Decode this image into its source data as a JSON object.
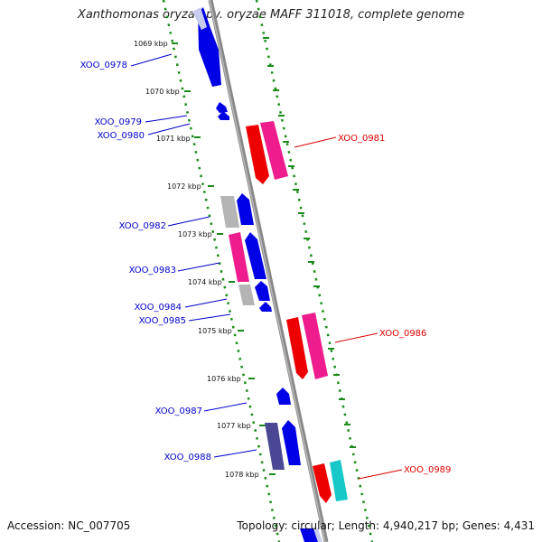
{
  "title": "Xanthomonas oryzae pv. oryzae MAFF 311018, complete genome",
  "accession": "Accession: NC_007705",
  "topology": "Topology: circular; Length: 4,940,217 bp; Genes: 4,431",
  "colors": {
    "axis": "#888888",
    "tick": "#1a8a1a",
    "left_label": "#0000cc",
    "right_label": "#dd0000",
    "blue": "#0000e6",
    "red": "#ee0000",
    "pink": "#ee1c8c",
    "gray": "#b4b4b4",
    "navy": "#4a4894",
    "cyan": "#18c8c8",
    "lavender": "#c8cdf0"
  },
  "kbp_labels": [
    "1069 kbp",
    "1070 kbp",
    "1071 kbp",
    "1072 kbp",
    "1073 kbp",
    "1074 kbp",
    "1075 kbp",
    "1076 kbp",
    "1077 kbp",
    "1078 kbp"
  ],
  "genes_left": [
    {
      "label": "XOO_0978"
    },
    {
      "label": "XOO_0979"
    },
    {
      "label": "XOO_0980"
    },
    {
      "label": "XOO_0982"
    },
    {
      "label": "XOO_0983"
    },
    {
      "label": "XOO_0984"
    },
    {
      "label": "XOO_0985"
    },
    {
      "label": "XOO_0987"
    },
    {
      "label": "XOO_0988"
    }
  ],
  "genes_right": [
    {
      "label": "XOO_0981"
    },
    {
      "label": "XOO_0986"
    },
    {
      "label": "XOO_0989"
    }
  ]
}
